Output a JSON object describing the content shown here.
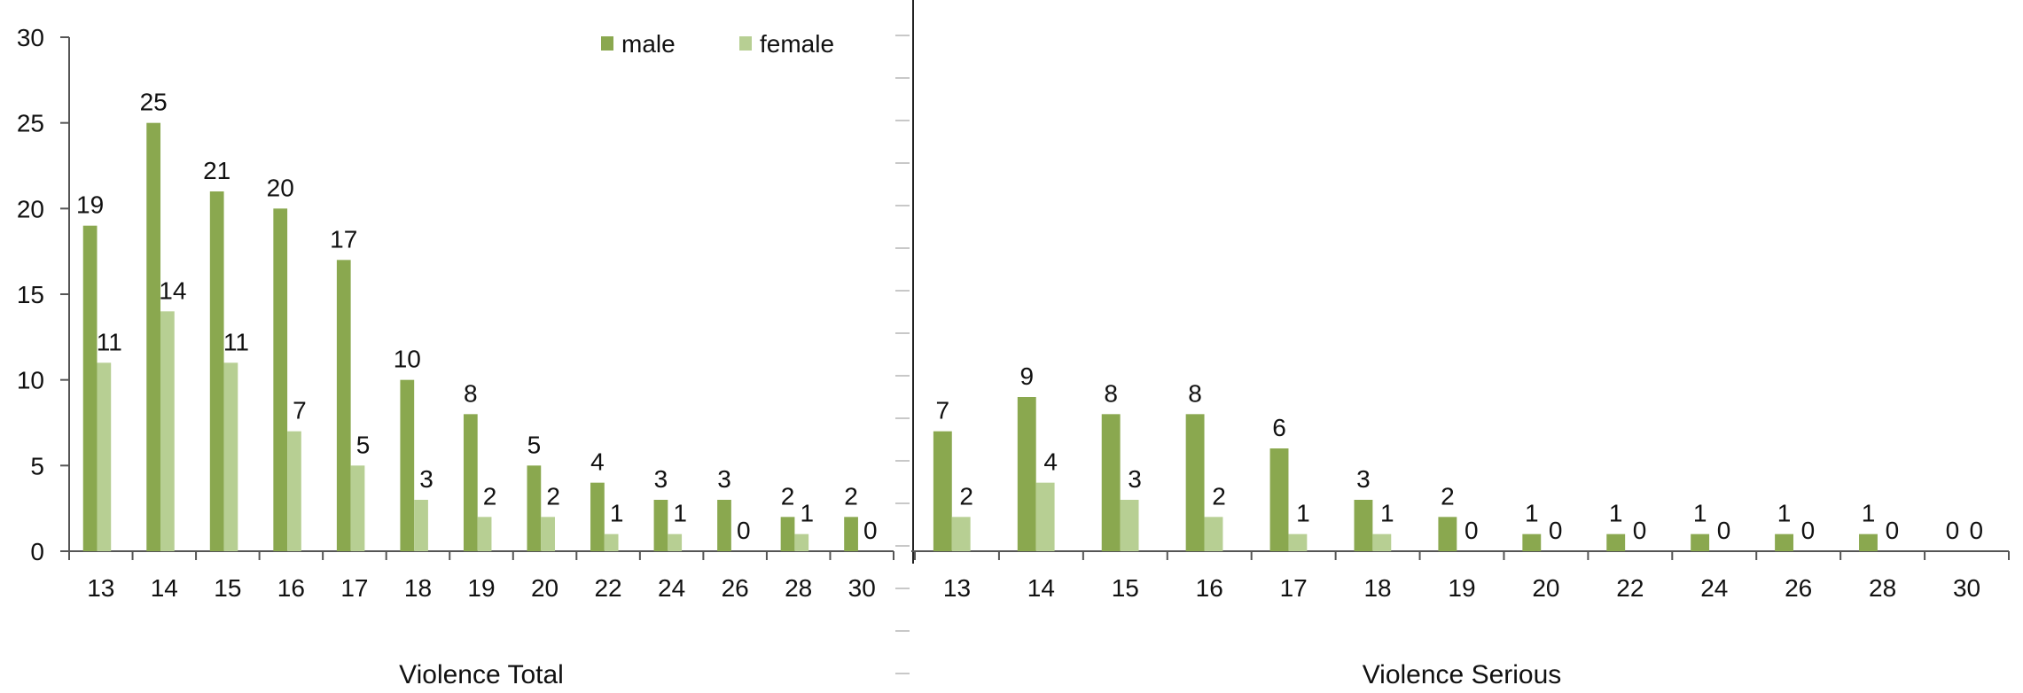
{
  "colors": {
    "male": "#8aa84f",
    "female": "#b7cf93"
  },
  "chart_data": [
    {
      "type": "bar",
      "title": "",
      "xlabel": "Violence Total",
      "ylabel": "",
      "ylim": [
        0,
        30
      ],
      "yticks": [
        "0",
        "5",
        "10",
        "15",
        "20",
        "25",
        "30"
      ],
      "categories": [
        "13",
        "14",
        "15",
        "16",
        "17",
        "18",
        "19",
        "20",
        "22",
        "24",
        "26",
        "28",
        "30"
      ],
      "series": [
        {
          "name": "male",
          "values": [
            19,
            25,
            21,
            20,
            17,
            10,
            8,
            5,
            4,
            3,
            3,
            2,
            2
          ]
        },
        {
          "name": "female",
          "values": [
            11,
            14,
            11,
            7,
            5,
            3,
            2,
            2,
            1,
            1,
            0,
            1,
            0
          ]
        }
      ],
      "legend": "top-right"
    },
    {
      "type": "bar",
      "title": "",
      "xlabel": "Violence Serious",
      "ylabel": "",
      "ylim": [
        0,
        30
      ],
      "categories": [
        "13",
        "14",
        "15",
        "16",
        "17",
        "18",
        "19",
        "20",
        "22",
        "24",
        "26",
        "28",
        "30"
      ],
      "series": [
        {
          "name": "male",
          "values": [
            7,
            9,
            8,
            8,
            6,
            3,
            2,
            1,
            1,
            1,
            1,
            1,
            0
          ]
        },
        {
          "name": "female",
          "values": [
            2,
            4,
            3,
            2,
            1,
            1,
            0,
            0,
            0,
            0,
            0,
            0,
            0
          ]
        }
      ]
    }
  ]
}
